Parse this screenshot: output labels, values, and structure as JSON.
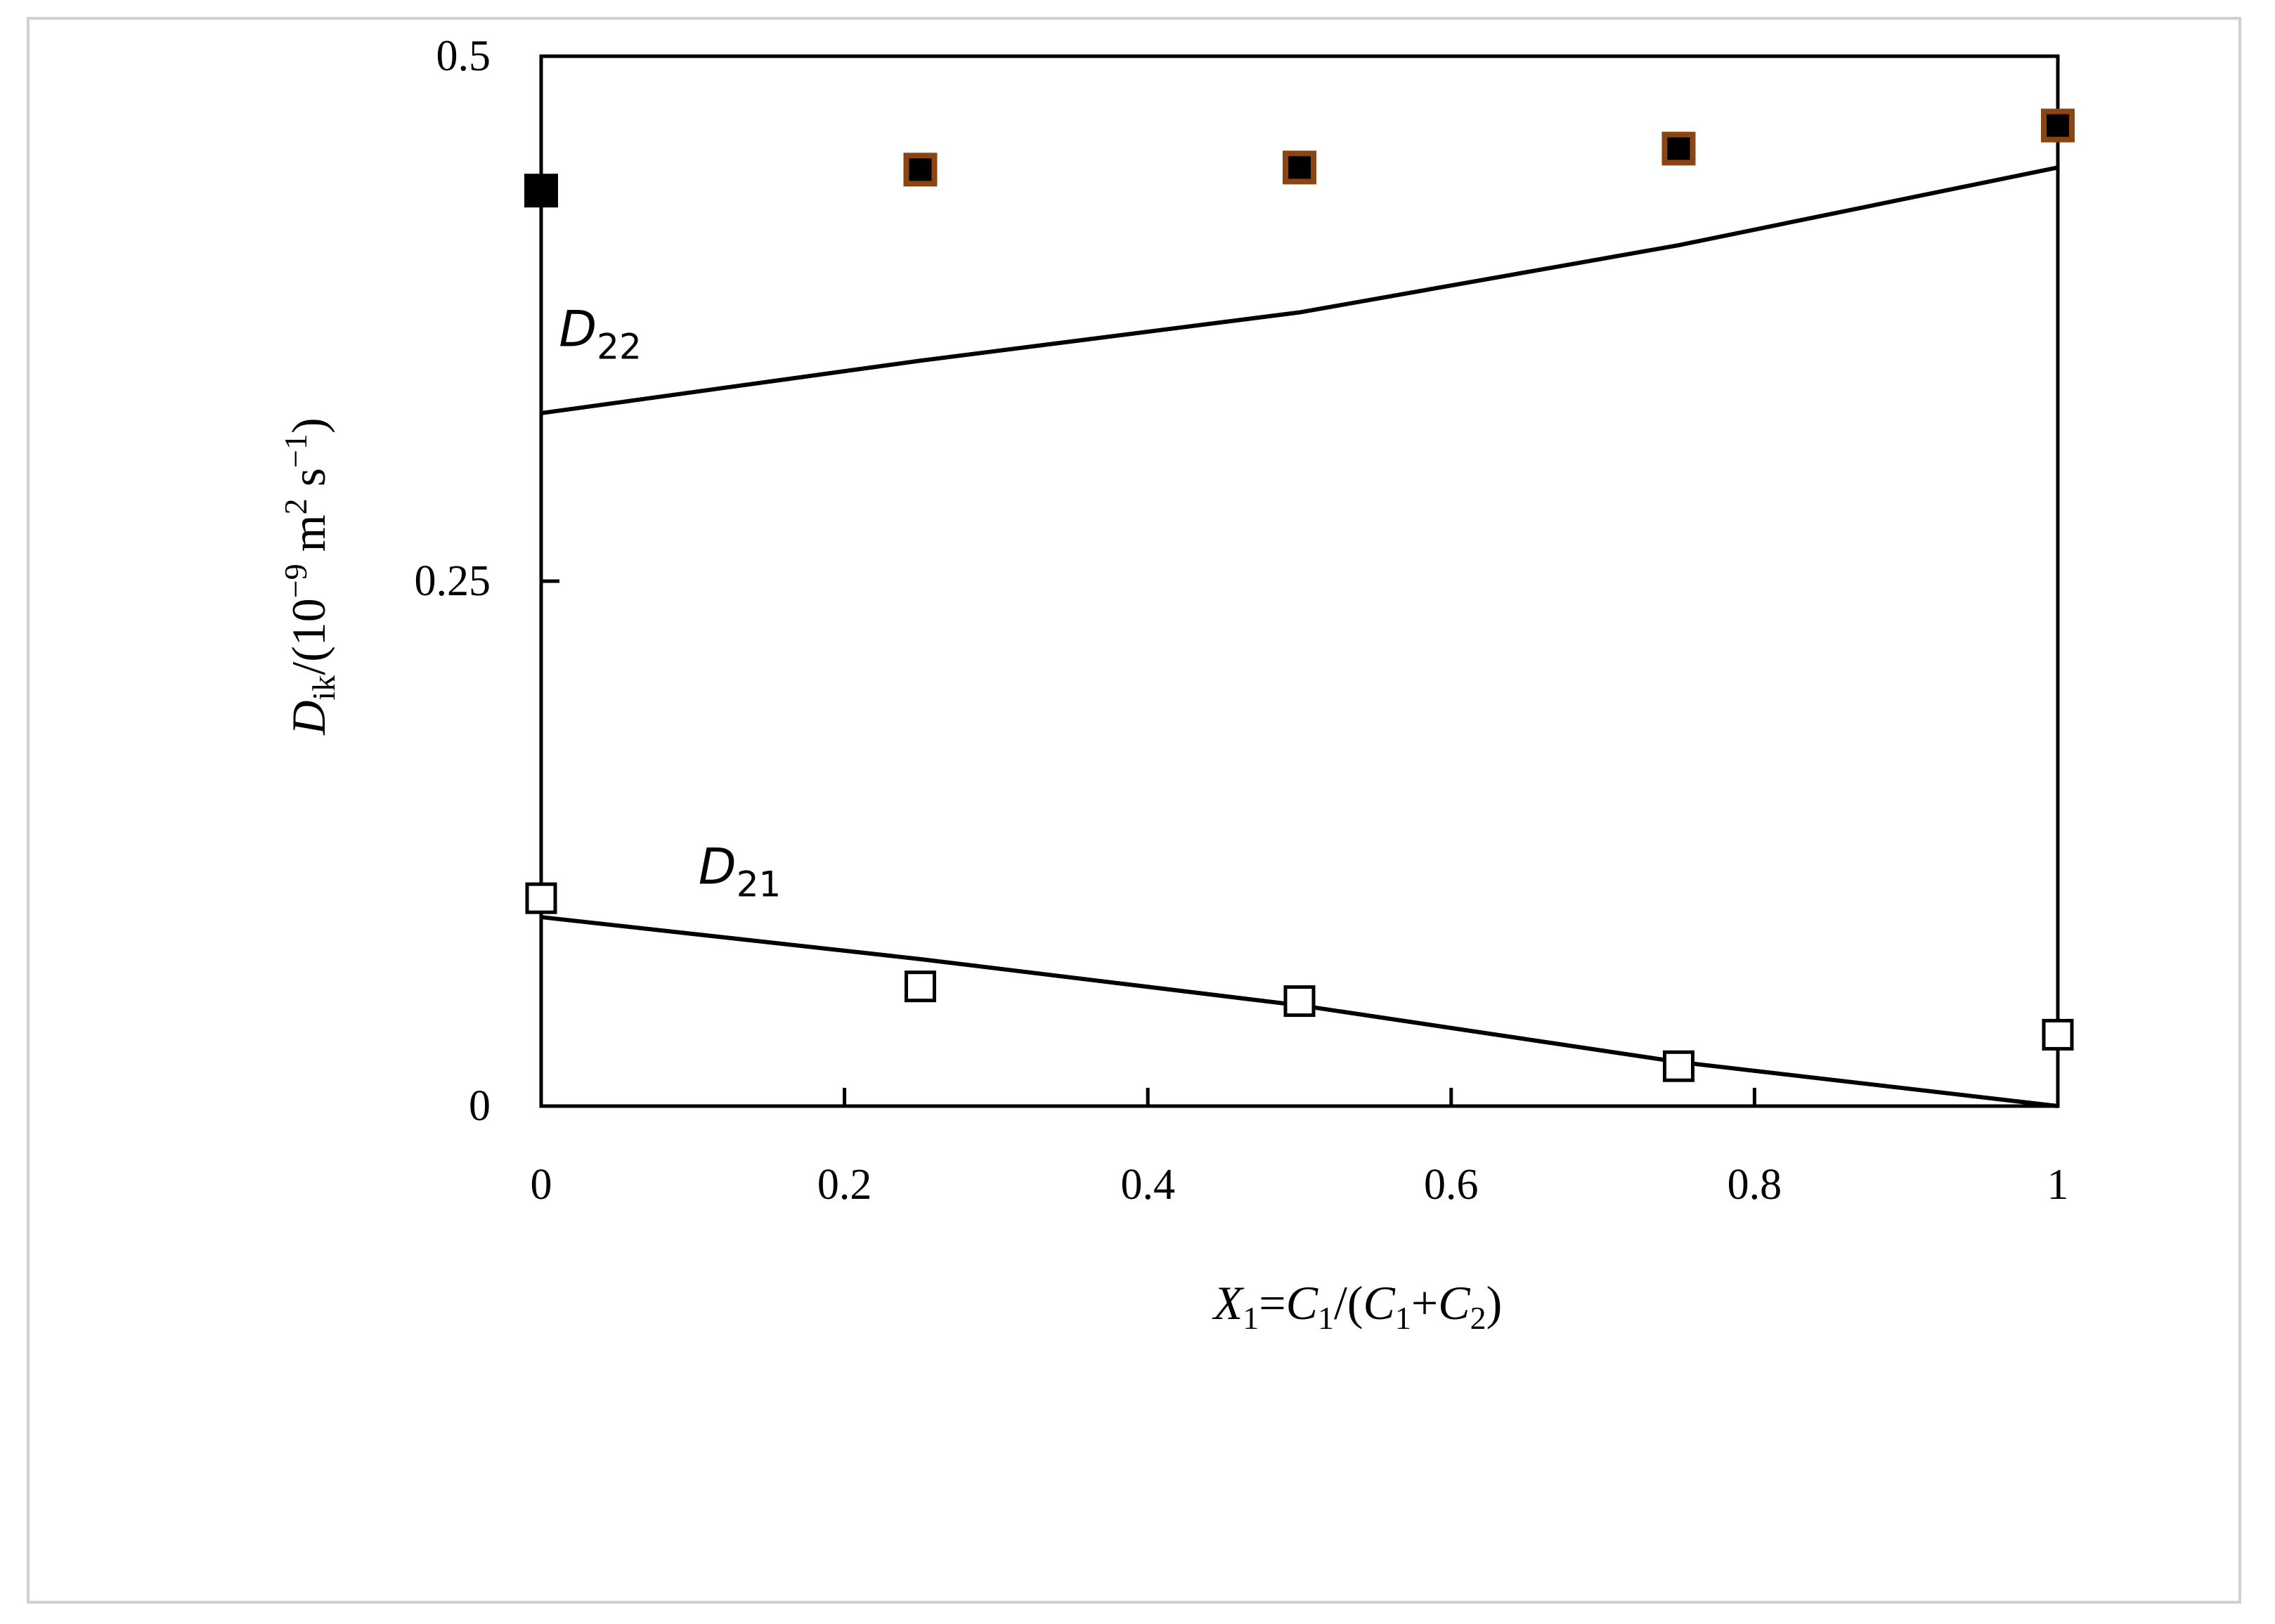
{
  "chart_data": {
    "type": "scatter",
    "xlabel_parts": {
      "x": "X",
      "s1": "1",
      "eq": "=",
      "c1": "C",
      "c1s": "1",
      "open": "/(",
      "c2": "C",
      "c2s": "1",
      "plus": "+",
      "c3": "C",
      "c3s": "2",
      "close": ")"
    },
    "ylabel_parts": {
      "d": "D",
      "ik": "ik",
      "unit1": "/(10",
      "exp1": "−9",
      "unit2": " m",
      "exp2": "2",
      "unit3": " s",
      "exp3": "−1",
      "close": ")"
    },
    "xlim": [
      0,
      1
    ],
    "ylim": [
      0,
      0.5
    ],
    "x_ticks": [
      "0",
      "0.2",
      "0.4",
      "0.6",
      "0.8",
      "1"
    ],
    "x_tick_values": [
      0,
      0.2,
      0.4,
      0.6,
      0.8,
      1
    ],
    "y_ticks": [
      "0",
      "0.25",
      "0.5"
    ],
    "y_tick_values": [
      0,
      0.25,
      0.5
    ],
    "annotations": [
      {
        "main": "D",
        "sub": "22",
        "x": 0.008,
        "y": 0.362
      },
      {
        "main": "D",
        "sub": "21",
        "x": 0.1,
        "y": 0.106
      }
    ],
    "series": [
      {
        "kind": "markers",
        "marker": "filled-square",
        "edge": "#000000",
        "fill": "#000000",
        "x": [
          0
        ],
        "y": [
          0.436
        ]
      },
      {
        "kind": "markers",
        "marker": "filled-square",
        "edge": "#8B4513",
        "fill": "#000000",
        "x": [
          0.25,
          0.5,
          0.75,
          1
        ],
        "y": [
          0.446,
          0.447,
          0.456,
          0.467
        ]
      },
      {
        "kind": "line",
        "color": "#000000",
        "x": [
          0,
          0.25,
          0.5,
          0.75,
          1
        ],
        "y": [
          0.33,
          0.355,
          0.378,
          0.41,
          0.447
        ]
      },
      {
        "kind": "markers",
        "marker": "open-square",
        "edge": "#000000",
        "fill": "#ffffff",
        "x": [
          0,
          0.25,
          0.5,
          0.75,
          1
        ],
        "y": [
          0.099,
          0.057,
          0.05,
          0.019,
          0.034
        ]
      },
      {
        "kind": "line",
        "color": "#000000",
        "x": [
          0,
          0.25,
          0.5,
          0.75,
          1
        ],
        "y": [
          0.09,
          0.07,
          0.048,
          0.021,
          0.0
        ]
      }
    ]
  }
}
